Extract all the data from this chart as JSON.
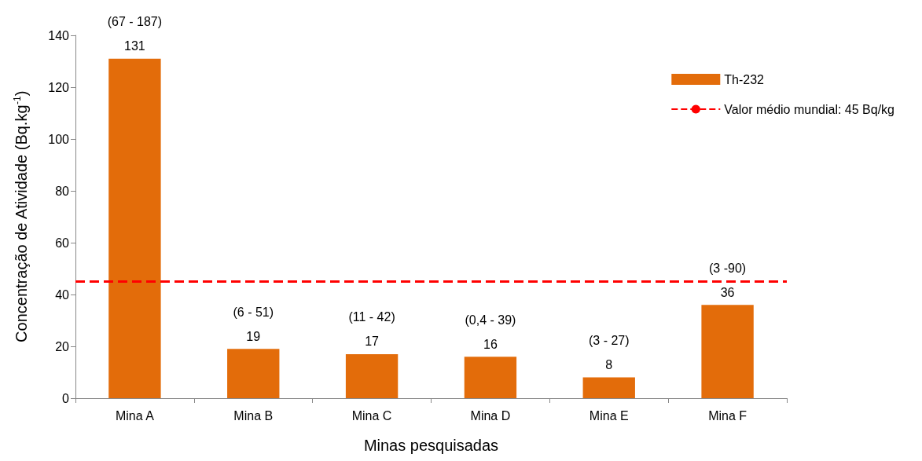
{
  "chart_data": {
    "type": "bar",
    "xlabel": "Minas pesquisadas",
    "ylabel": "Concentração de Atividade (Bq.kg$^{-1}$)",
    "categories": [
      "Mina A",
      "Mina B",
      "Mina C",
      "Mina D",
      "Mina E",
      "Mina F"
    ],
    "series": [
      {
        "name": "Th-232",
        "color": "#e36c0a",
        "values": [
          131,
          19,
          17,
          16,
          8,
          36
        ]
      }
    ],
    "ylim": [
      0,
      140
    ],
    "yticks": [
      0,
      20,
      40,
      60,
      80,
      100,
      120,
      140
    ],
    "data_labels": true,
    "annotations": [
      {
        "text": "(67 - 187)",
        "x": "Mina A",
        "y": 131
      },
      {
        "text": "(6 - 51)",
        "x": "Mina B",
        "y": 19
      },
      {
        "text": "(11 - 42)",
        "x": "Mina C",
        "y": 17
      },
      {
        "text": "(0,4 - 39)",
        "x": "Mina D",
        "y": 16
      },
      {
        "text": "(3 - 27)",
        "x": "Mina E",
        "y": 8
      },
      {
        "text": "(3 -90)",
        "x": "Mina F",
        "y": 36
      }
    ],
    "ref_lines": [
      {
        "axis": "y",
        "value": 45,
        "label": "Valor médio mundial: 45 Bq/kg",
        "color": "#ff0000",
        "line_style": "dashed"
      }
    ],
    "grid": false,
    "legend": "top right"
  }
}
